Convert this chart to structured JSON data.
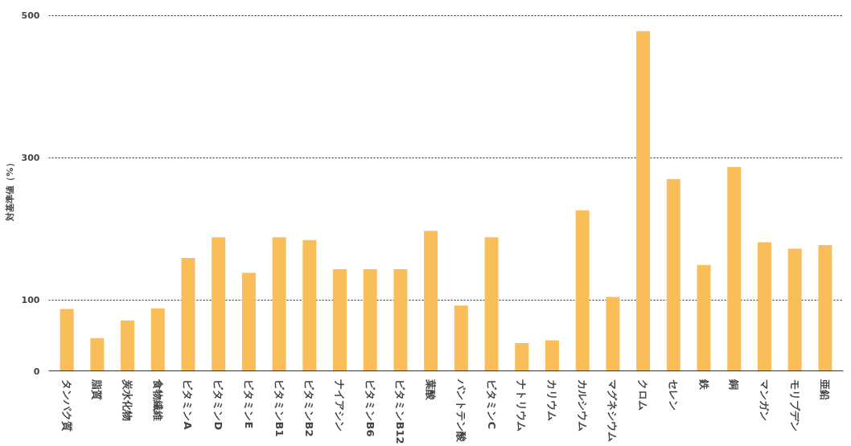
{
  "chart_data": {
    "type": "bar",
    "ylabel": "対基準値（%）",
    "categories": [
      "タンパク質",
      "脂質",
      "炭水化物",
      "食物繊維",
      "ビタミンA",
      "ビタミンD",
      "ビタミンE",
      "ビタミンB1",
      "ビタミンB2",
      "ナイアシン",
      "ビタミンB6",
      "ビタミンB12",
      "葉酸",
      "パントテン酸",
      "ビタミンC",
      "ナトリウム",
      "カリウム",
      "カルシウム",
      "マグネシウム",
      "クロム",
      "セレン",
      "鉄",
      "銅",
      "マンガン",
      "モリブデン",
      "亜鉛"
    ],
    "values": [
      87,
      46,
      71,
      88,
      159,
      188,
      138,
      188,
      184,
      143,
      143,
      143,
      197,
      92,
      188,
      39,
      43,
      226,
      104,
      478,
      270,
      149,
      287,
      181,
      172,
      177
    ],
    "color": "#f9be5a",
    "ylim": [
      0,
      500
    ],
    "yticks": [
      0,
      100,
      300,
      500
    ],
    "grid": "y"
  }
}
